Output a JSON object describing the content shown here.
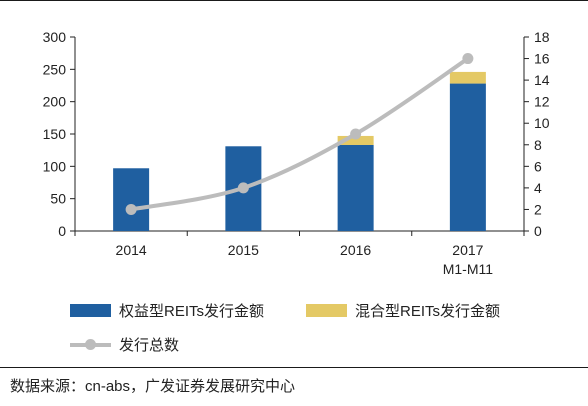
{
  "chart_data": {
    "type": "bar",
    "categories": [
      [
        "2014"
      ],
      [
        "2015"
      ],
      [
        "2016"
      ],
      [
        "2017",
        "M1-M11"
      ]
    ],
    "series": [
      {
        "name": "权益型REITs发行金额",
        "kind": "bar",
        "axis": "left",
        "color": "#1f5fa0",
        "values": [
          97,
          131,
          133,
          228
        ]
      },
      {
        "name": "混合型REITs发行金额",
        "kind": "bar",
        "axis": "left",
        "color": "#e4c965",
        "values": [
          0,
          0,
          14,
          18
        ]
      },
      {
        "name": "发行总数",
        "kind": "line",
        "axis": "right",
        "color": "#bcbcbc",
        "values": [
          2,
          4,
          9,
          16
        ]
      }
    ],
    "yleft": {
      "min": 0,
      "max": 300,
      "ticks": [
        "0",
        "50",
        "100",
        "150",
        "200",
        "250",
        "300"
      ]
    },
    "yright": {
      "min": 0,
      "max": 18,
      "ticks": [
        "0",
        "2",
        "4",
        "6",
        "8",
        "10",
        "12",
        "14",
        "16",
        "18"
      ]
    },
    "stacked": true,
    "grid": false,
    "legend_position": "bottom-left"
  },
  "source": "数据来源：cn-abs，广发证券发展研究中心"
}
